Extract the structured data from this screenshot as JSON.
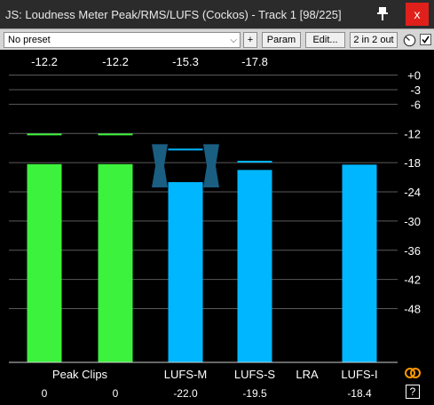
{
  "window": {
    "title": "JS: Loudness Meter Peak/RMS/LUFS (Cockos) - Track 1 [98/225]",
    "close_label": "x"
  },
  "toolbar": {
    "preset": "No preset",
    "add_label": "+",
    "param_label": "Param",
    "edit_label": "Edit...",
    "io_label": "2 in 2 out",
    "enabled": true
  },
  "scale": {
    "labels": [
      "+0",
      "-3",
      "-6",
      "-12",
      "-18",
      "-24",
      "-30",
      "-36",
      "-42",
      "-48"
    ],
    "values": [
      0,
      -3,
      -6,
      -12,
      -18,
      -24,
      -30,
      -36,
      -42,
      -48
    ]
  },
  "meters": [
    {
      "name": "peak-l",
      "bar_value": -18.3,
      "peak_hold": -12.2,
      "top_readout": "-12.2",
      "color": "#3cf23c",
      "hold_color": "#3cf23c"
    },
    {
      "name": "peak-r",
      "bar_value": -18.3,
      "peak_hold": -12.2,
      "top_readout": "-12.2",
      "color": "#3cf23c",
      "hold_color": "#3cf23c"
    },
    {
      "name": "lufs-m",
      "bar_value": -22.0,
      "peak_hold": -15.3,
      "top_readout": "-15.3",
      "color": "#00b7ff",
      "hold_color": "#00b7ff"
    },
    {
      "name": "lufs-s",
      "bar_value": -19.5,
      "peak_hold": -17.8,
      "top_readout": "-17.8",
      "color": "#00b7ff",
      "hold_color": "#00b7ff"
    },
    {
      "name": "lufs-i",
      "bar_value": -18.4,
      "peak_hold": null,
      "top_readout": "",
      "color": "#00b7ff",
      "hold_color": "#00b7ff"
    }
  ],
  "target_marker": {
    "range": [
      -15.3,
      -22.0
    ],
    "color": "#1a5e82"
  },
  "bottom": {
    "labels": {
      "peak_clips": "Peak Clips",
      "lufs_m": "LUFS-M",
      "lufs_s": "LUFS-S",
      "lra": "LRA",
      "lufs_i": "LUFS-I"
    },
    "values": {
      "clips_l": "0",
      "clips_r": "0",
      "lufs_m": "-22.0",
      "lufs_s": "-19.5",
      "lufs_i": "-18.4"
    },
    "help_label": "?"
  },
  "colors": {
    "grid": "#5a5a5a",
    "axis": "#cfcfcf",
    "ring": "#ff9900"
  }
}
